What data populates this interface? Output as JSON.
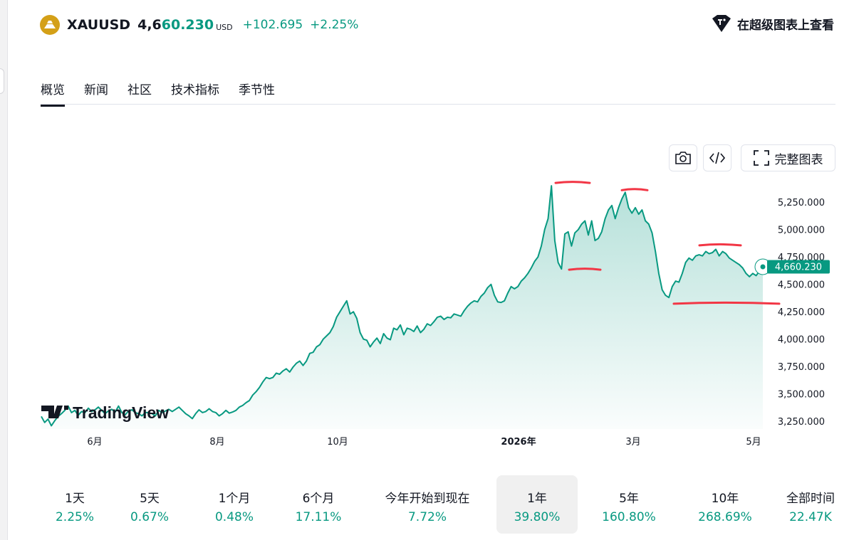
{
  "header": {
    "symbol": "XAUUSD",
    "price_prefix": "4,6",
    "price_rest": "60.230",
    "currency": "USD",
    "change": "+102.695",
    "change_pct": "+2.25%",
    "view_supercharts": "在超级图表上查看"
  },
  "tabs": [
    "概览",
    "新闻",
    "社区",
    "技术指标",
    "季节性"
  ],
  "toolbar": {
    "fullscreen_label": "完整图表",
    "camera_icon": "camera-icon",
    "embed_icon": "code-icon",
    "expand_icon": "expand-icon"
  },
  "watermark": "TradingView",
  "colors": {
    "accent": "#089981",
    "annotation": "#f23645",
    "logo": "#d4a017",
    "text": "#131722"
  },
  "chart_data": {
    "type": "area",
    "x_tick_labels": [
      "6月",
      "8月",
      "10月",
      "2026年",
      "3月",
      "5月"
    ],
    "y_tick_labels": [
      "5,250.000",
      "5,000.000",
      "4,750.000",
      "4,500.000",
      "4,250.000",
      "4,000.000",
      "3,750.000",
      "3,500.000",
      "3,250.000"
    ],
    "ylim": [
      3180,
      5420
    ],
    "last_value_label": "4,660.230",
    "series": [
      {
        "values": [
          3295,
          3240,
          3270,
          3210,
          3255,
          3295,
          3320,
          3350,
          3390,
          3330,
          3350,
          3305,
          3340,
          3330,
          3370,
          3340,
          3355,
          3380,
          3350,
          3320,
          3345,
          3360,
          3335,
          3390,
          3330,
          3310,
          3345,
          3355,
          3330,
          3320,
          3300,
          3330,
          3330,
          3320,
          3300,
          3350,
          3330,
          3345,
          3360,
          3340,
          3360,
          3380,
          3350,
          3320,
          3300,
          3275,
          3320,
          3355,
          3330,
          3340,
          3365,
          3340,
          3330,
          3300,
          3320,
          3350,
          3325,
          3335,
          3350,
          3380,
          3395,
          3420,
          3440,
          3490,
          3520,
          3560,
          3610,
          3650,
          3640,
          3650,
          3690,
          3680,
          3710,
          3730,
          3700,
          3745,
          3780,
          3800,
          3760,
          3800,
          3870,
          3880,
          3930,
          3950,
          4000,
          4030,
          4060,
          4115,
          4200,
          4250,
          4300,
          4350,
          4230,
          4250,
          4190,
          4060,
          4000,
          3990,
          3930,
          3975,
          4010,
          3960,
          4050,
          4010,
          3995,
          4100,
          4085,
          4130,
          4040,
          4100,
          4090,
          4070,
          4120,
          4060,
          4090,
          4140,
          4125,
          4160,
          4200,
          4210,
          4180,
          4200,
          4195,
          4230,
          4220,
          4210,
          4260,
          4300,
          4330,
          4350,
          4340,
          4390,
          4420,
          4470,
          4500,
          4400,
          4340,
          4335,
          4350,
          4420,
          4480,
          4460,
          4480,
          4530,
          4560,
          4600,
          4650,
          4710,
          4750,
          4850,
          5000,
          5100,
          5400,
          4900,
          4700,
          4640,
          4960,
          4980,
          4850,
          4970,
          5000,
          5050,
          5080,
          4950,
          5080,
          4900,
          4920,
          4980,
          5100,
          5180,
          5220,
          5100,
          5200,
          5280,
          5340,
          5200,
          5150,
          5200,
          5140,
          5180,
          5080,
          5050,
          4970,
          4800,
          4600,
          4450,
          4400,
          4380,
          4480,
          4530,
          4520,
          4600,
          4700,
          4740,
          4720,
          4760,
          4770,
          4760,
          4800,
          4780,
          4790,
          4820,
          4760,
          4800,
          4780,
          4740,
          4720,
          4700,
          4680,
          4650,
          4600,
          4570,
          4600,
          4580,
          4620,
          4660.23
        ]
      }
    ],
    "annotations": [
      {
        "label": "peak-1",
        "value": 5400
      },
      {
        "label": "peak-2",
        "value": 5340
      },
      {
        "label": "peak-3",
        "value": 4830
      },
      {
        "label": "trough-1",
        "value": 4640
      },
      {
        "label": "support",
        "value": 4330
      }
    ]
  },
  "ranges": [
    {
      "label": "1天",
      "value": "2.25%"
    },
    {
      "label": "5天",
      "value": "0.67%"
    },
    {
      "label": "1个月",
      "value": "0.48%"
    },
    {
      "label": "6个月",
      "value": "17.11%"
    },
    {
      "label": "今年开始到现在",
      "value": "7.72%"
    },
    {
      "label": "1年",
      "value": "39.80%",
      "active": true
    },
    {
      "label": "5年",
      "value": "160.80%"
    },
    {
      "label": "10年",
      "value": "268.69%"
    },
    {
      "label": "全部时间",
      "value": "22.47K"
    }
  ]
}
